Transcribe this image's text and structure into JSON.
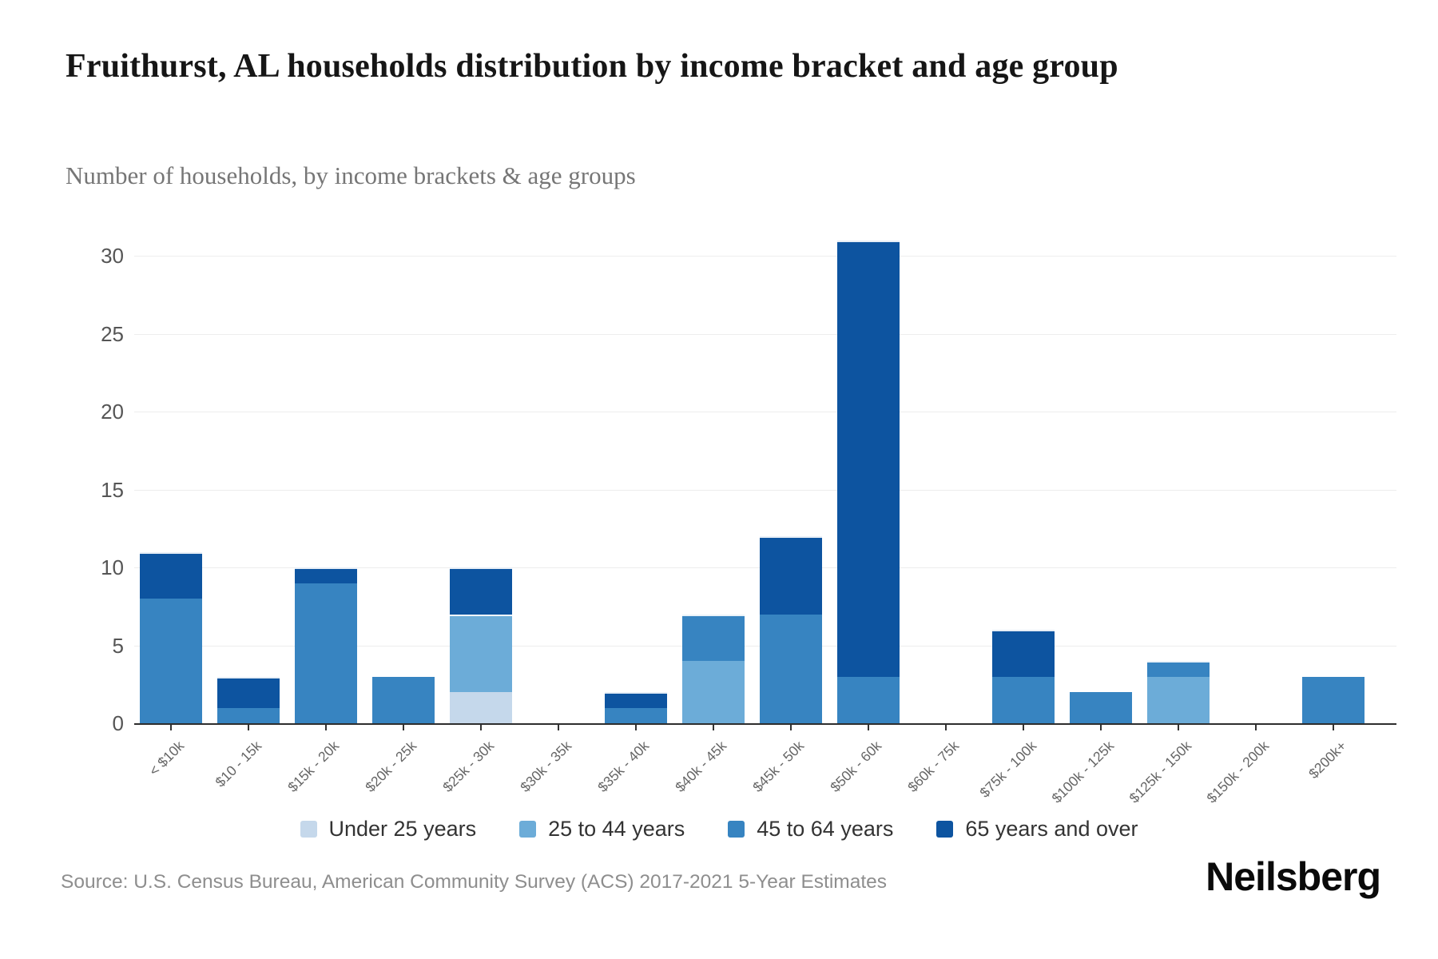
{
  "header": {
    "title": "Fruithurst, AL households distribution by income bracket and age group",
    "subtitle": "Number of households, by income brackets & age groups"
  },
  "chart_data": {
    "type": "bar",
    "stacked": true,
    "title": "Fruithurst, AL households distribution by income bracket and age group",
    "subtitle": "Number of households, by income brackets & age groups",
    "categories": [
      "< $10k",
      "$10 - 15k",
      "$15k - 20k",
      "$20k - 25k",
      "$25k - 30k",
      "$30k - 35k",
      "$35k - 40k",
      "$40k - 45k",
      "$45k - 50k",
      "$50k - 60k",
      "$60k - 75k",
      "$75k - 100k",
      "$100k - 125k",
      "$125k - 150k",
      "$150k - 200k",
      "$200k+"
    ],
    "series": [
      {
        "name": "Under 25 years",
        "color": "#c5d8eb",
        "values": [
          0,
          0,
          0,
          0,
          2,
          0,
          0,
          0,
          0,
          0,
          0,
          0,
          0,
          0,
          0,
          0
        ]
      },
      {
        "name": "25 to 44 years",
        "color": "#6cacd8",
        "values": [
          0,
          0,
          0,
          0,
          5,
          0,
          0,
          4,
          0,
          0,
          0,
          0,
          0,
          3,
          0,
          0
        ]
      },
      {
        "name": "45 to 64 years",
        "color": "#3784c1",
        "values": [
          8,
          1,
          9,
          3,
          0,
          0,
          1,
          3,
          7,
          3,
          0,
          3,
          2,
          1,
          0,
          3
        ]
      },
      {
        "name": "65 years and over",
        "color": "#0d54a0",
        "values": [
          3,
          2,
          1,
          0,
          3,
          0,
          1,
          0,
          5,
          28,
          0,
          3,
          0,
          0,
          0,
          0
        ]
      }
    ],
    "totals": [
      11,
      3,
      10,
      3,
      10,
      0,
      2,
      7,
      12,
      31,
      0,
      6,
      2,
      4,
      0,
      3
    ],
    "yticks": [
      0,
      5,
      10,
      15,
      20,
      25,
      30
    ],
    "ylim": [
      0,
      32
    ],
    "xlabel": "",
    "ylabel": "",
    "grid": "horizontal",
    "legend_position": "bottom"
  },
  "footer": {
    "source": "Source: U.S. Census Bureau, American Community Survey (ACS) 2017-2021 5-Year Estimates",
    "logo": "Neilsberg"
  }
}
